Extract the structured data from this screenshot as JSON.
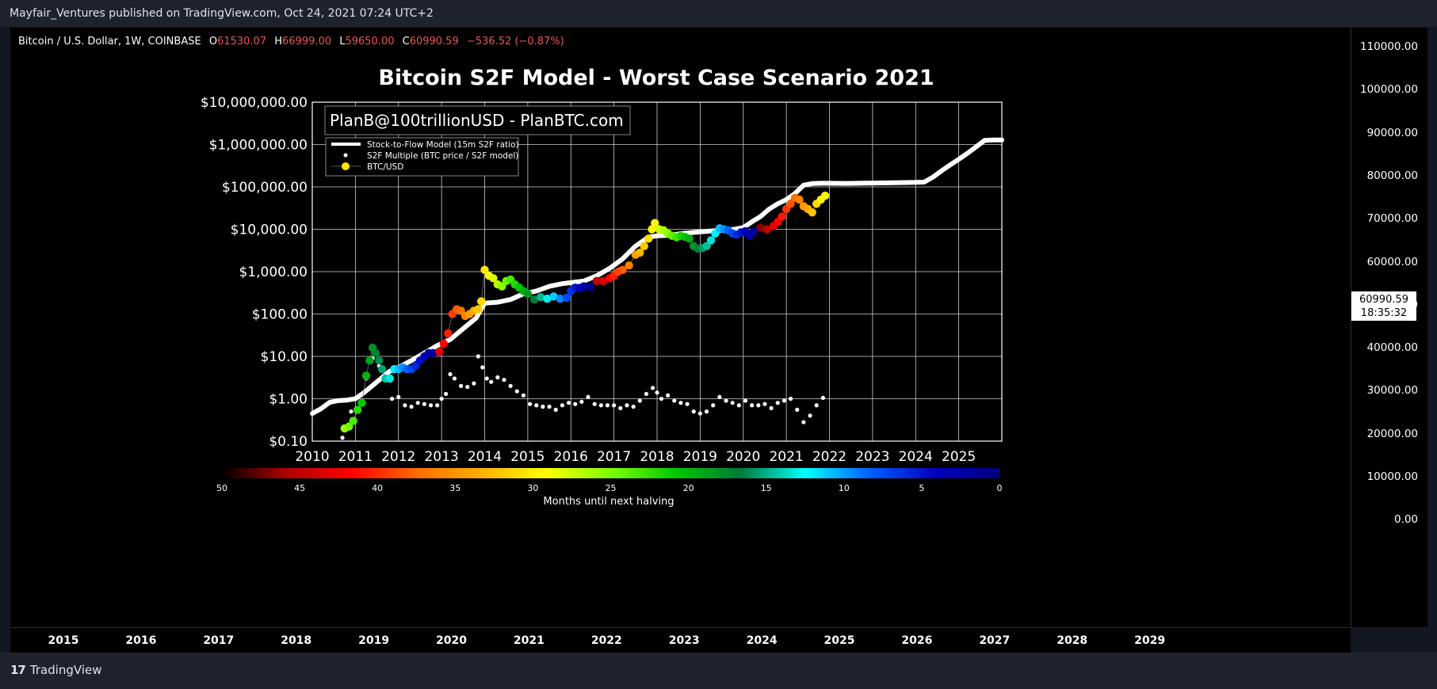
{
  "header": {
    "publisher_line": "Mayfair_Ventures published on TradingView.com, Oct 24, 2021 07:24 UTC+2"
  },
  "symbol": {
    "name": "Bitcoin / U.S. Dollar, 1W, COINBASE",
    "o_label": "O",
    "o_value": "61530.07",
    "h_label": "H",
    "h_value": "66999.00",
    "l_label": "L",
    "l_value": "59650.00",
    "c_label": "C",
    "c_value": "60990.59",
    "change": "−536.52 (−0.87%)"
  },
  "price_axis": {
    "labels": [
      "110000.00",
      "100000.00",
      "90000.00",
      "80000.00",
      "70000.00",
      "60000.00",
      "50000.00",
      "40000.00",
      "30000.00",
      "20000.00",
      "10000.00",
      "0.00"
    ],
    "current_price": "60990.59",
    "countdown": "18:35:32"
  },
  "time_axis": {
    "labels": [
      "2015",
      "2016",
      "2017",
      "2018",
      "2019",
      "2020",
      "2021",
      "2022",
      "2023",
      "2024",
      "2025",
      "2026",
      "2027",
      "2028",
      "2029"
    ]
  },
  "footer": {
    "brand": "TradingView"
  },
  "chart_data": {
    "type": "scatter",
    "title": "Bitcoin S2F Model - Worst Case Scenario 2021",
    "watermark": "PlanB@100trillionUSD - PlanBTC.com",
    "y_scale": "log",
    "ylim": [
      0.1,
      10000000
    ],
    "xlim": [
      2010,
      2026
    ],
    "y_ticks": [
      {
        "v": 0.1,
        "label": "$0.10"
      },
      {
        "v": 1,
        "label": "$1.00"
      },
      {
        "v": 10,
        "label": "$10.00"
      },
      {
        "v": 100,
        "label": "$100.00"
      },
      {
        "v": 1000,
        "label": "$1,000.00"
      },
      {
        "v": 10000,
        "label": "$10,000.00"
      },
      {
        "v": 100000,
        "label": "$100,000.00"
      },
      {
        "v": 1000000,
        "label": "$1,000,000.00"
      },
      {
        "v": 10000000,
        "label": "$10,000,000.00"
      }
    ],
    "x_ticks": [
      "2010",
      "2011",
      "2012",
      "2013",
      "2014",
      "2015",
      "2016",
      "2017",
      "2018",
      "2019",
      "2020",
      "2021",
      "2022",
      "2023",
      "2024",
      "2025"
    ],
    "grid": true,
    "legend": {
      "placement": "top-left",
      "entries": [
        {
          "label": "Stock-to-Flow Model (15m S2F ratio)",
          "marker": "line",
          "color": "#ffffff"
        },
        {
          "label": "S2F Multiple (BTC price / S2F model)",
          "marker": "dot",
          "color": "#ffffff"
        },
        {
          "label": "BTC/USD",
          "marker": "dot",
          "color": "#ffe600"
        }
      ]
    },
    "colorbar": {
      "label": "Months until next halving",
      "ticks": [
        "50",
        "45",
        "40",
        "35",
        "30",
        "25",
        "20",
        "15",
        "10",
        "5",
        "0"
      ],
      "stops": [
        "#000000",
        "#b00000",
        "#ff0000",
        "#ff6a00",
        "#ffb000",
        "#ffff00",
        "#7dff00",
        "#00c800",
        "#007a3a",
        "#00ffff",
        "#0060ff",
        "#0000c0",
        "#000080"
      ]
    },
    "series": [
      {
        "name": "Stock-to-Flow Model (15m S2F ratio)",
        "kind": "line",
        "x": [
          2010.0,
          2010.2,
          2010.4,
          2010.6,
          2010.8,
          2011.0,
          2011.2,
          2011.5,
          2011.8,
          2012.0,
          2012.3,
          2012.6,
          2012.9,
          2013.2,
          2013.5,
          2013.8,
          2014.0,
          2014.3,
          2014.6,
          2014.9,
          2015.2,
          2015.5,
          2015.8,
          2016.0,
          2016.3,
          2016.6,
          2016.9,
          2017.2,
          2017.5,
          2017.8,
          2018.0,
          2018.3,
          2018.6,
          2018.9,
          2019.2,
          2019.5,
          2019.8,
          2020.0,
          2020.2,
          2020.4,
          2020.6,
          2020.8,
          2021.0,
          2021.2,
          2021.4,
          2021.6,
          2021.8,
          2022.0,
          2022.4,
          2022.8,
          2023.2,
          2023.6,
          2024.0,
          2024.2,
          2024.4,
          2024.6,
          2024.8,
          2025.0,
          2025.2,
          2025.4,
          2025.6,
          2025.8,
          2026.0
        ],
        "y": [
          0.45,
          0.58,
          0.82,
          0.9,
          0.93,
          1.0,
          1.4,
          2.5,
          4.5,
          5.5,
          8,
          12,
          18,
          25,
          45,
          80,
          180,
          190,
          220,
          300,
          350,
          450,
          520,
          550,
          600,
          800,
          1200,
          2000,
          4000,
          6500,
          7000,
          7200,
          8000,
          8500,
          9000,
          9500,
          10000,
          11000,
          15000,
          20000,
          30000,
          40000,
          50000,
          70000,
          110000,
          120000,
          122000,
          122000,
          121000,
          123000,
          124000,
          126000,
          128000,
          130000,
          170000,
          240000,
          330000,
          450000,
          620000,
          880000,
          1250000,
          1280000,
          1280000
        ]
      },
      {
        "name": "S2F Multiple (BTC price / S2F model)",
        "kind": "scatter",
        "x": [
          2010.7,
          2010.9,
          2011.1,
          2011.25,
          2011.4,
          2011.55,
          2011.7,
          2011.85,
          2012.0,
          2012.15,
          2012.3,
          2012.45,
          2012.6,
          2012.75,
          2012.9,
          2013.0,
          2013.1,
          2013.2,
          2013.3,
          2013.45,
          2013.6,
          2013.75,
          2013.85,
          2013.95,
          2014.05,
          2014.15,
          2014.3,
          2014.45,
          2014.6,
          2014.75,
          2014.9,
          2015.05,
          2015.2,
          2015.35,
          2015.5,
          2015.65,
          2015.8,
          2015.95,
          2016.1,
          2016.25,
          2016.4,
          2016.55,
          2016.7,
          2016.85,
          2017.0,
          2017.15,
          2017.3,
          2017.45,
          2017.6,
          2017.75,
          2017.9,
          2018.0,
          2018.1,
          2018.25,
          2018.4,
          2018.55,
          2018.7,
          2018.85,
          2019.0,
          2019.15,
          2019.3,
          2019.45,
          2019.6,
          2019.75,
          2019.9,
          2020.05,
          2020.2,
          2020.35,
          2020.5,
          2020.65,
          2020.8,
          2020.95,
          2021.1,
          2021.25,
          2021.4,
          2021.55,
          2021.7,
          2021.85
        ],
        "y": [
          0.12,
          0.5,
          0.8,
          3.0,
          9,
          6,
          3.5,
          1.0,
          1.1,
          0.7,
          0.65,
          0.8,
          0.75,
          0.7,
          0.7,
          1.0,
          1.3,
          3.8,
          3.0,
          2.0,
          1.9,
          2.3,
          10,
          5.5,
          3.0,
          2.5,
          3.2,
          2.8,
          2.0,
          1.5,
          1.2,
          0.75,
          0.7,
          0.65,
          0.65,
          0.55,
          0.7,
          0.8,
          0.75,
          0.85,
          1.1,
          0.75,
          0.7,
          0.7,
          0.7,
          0.6,
          0.7,
          0.65,
          0.9,
          1.3,
          1.8,
          1.4,
          1.0,
          1.2,
          0.9,
          0.8,
          0.75,
          0.5,
          0.45,
          0.5,
          0.7,
          1.1,
          0.9,
          0.8,
          0.7,
          0.9,
          0.7,
          0.7,
          0.75,
          0.6,
          0.8,
          0.9,
          1.0,
          0.55,
          0.28,
          0.4,
          0.7,
          1.05
        ]
      },
      {
        "name": "BTC/USD",
        "kind": "scatter",
        "x": [
          2010.75,
          2010.85,
          2010.95,
          2011.05,
          2011.15,
          2011.25,
          2011.33,
          2011.4,
          2011.47,
          2011.55,
          2011.62,
          2011.7,
          2011.8,
          2011.9,
          2012.0,
          2012.1,
          2012.2,
          2012.3,
          2012.4,
          2012.5,
          2012.6,
          2012.7,
          2012.8,
          2012.95,
          2013.05,
          2013.15,
          2013.25,
          2013.35,
          2013.45,
          2013.55,
          2013.65,
          2013.75,
          2013.85,
          2013.92,
          2014.0,
          2014.1,
          2014.2,
          2014.3,
          2014.4,
          2014.5,
          2014.6,
          2014.7,
          2014.8,
          2014.9,
          2015.0,
          2015.15,
          2015.3,
          2015.45,
          2015.6,
          2015.75,
          2015.9,
          2016.0,
          2016.1,
          2016.2,
          2016.3,
          2016.45,
          2016.6,
          2016.75,
          2016.9,
          2017.0,
          2017.1,
          2017.2,
          2017.35,
          2017.5,
          2017.6,
          2017.7,
          2017.8,
          2017.88,
          2017.95,
          2018.05,
          2018.15,
          2018.25,
          2018.35,
          2018.45,
          2018.55,
          2018.65,
          2018.75,
          2018.85,
          2018.95,
          2019.05,
          2019.15,
          2019.25,
          2019.35,
          2019.45,
          2019.55,
          2019.65,
          2019.75,
          2019.85,
          2019.95,
          2020.05,
          2020.15,
          2020.25,
          2020.4,
          2020.55,
          2020.7,
          2020.8,
          2020.9,
          2021.0,
          2021.1,
          2021.2,
          2021.3,
          2021.4,
          2021.5,
          2021.6,
          2021.7,
          2021.8,
          2021.9
        ],
        "y": [
          0.2,
          0.22,
          0.3,
          0.55,
          0.8,
          3.5,
          8,
          16,
          12,
          8,
          5,
          3,
          3,
          5,
          5,
          5.5,
          5,
          5,
          6,
          8,
          10,
          12,
          12,
          13,
          20,
          35,
          100,
          130,
          120,
          90,
          100,
          120,
          130,
          200,
          1100,
          800,
          700,
          500,
          450,
          600,
          650,
          500,
          420,
          350,
          300,
          220,
          250,
          230,
          260,
          230,
          240,
          350,
          420,
          400,
          450,
          430,
          600,
          600,
          700,
          800,
          1000,
          1100,
          1400,
          2500,
          2800,
          4000,
          6000,
          10000,
          14000,
          10000,
          9500,
          8000,
          7000,
          6500,
          7000,
          6600,
          6000,
          4000,
          3500,
          3600,
          4000,
          5500,
          8000,
          10500,
          10000,
          9500,
          8000,
          7500,
          8500,
          9000,
          7000,
          9000,
          11000,
          10000,
          12000,
          15000,
          20000,
          30000,
          40000,
          55000,
          50000,
          35000,
          30000,
          25000,
          40000,
          50000,
          62000
        ]
      }
    ]
  }
}
